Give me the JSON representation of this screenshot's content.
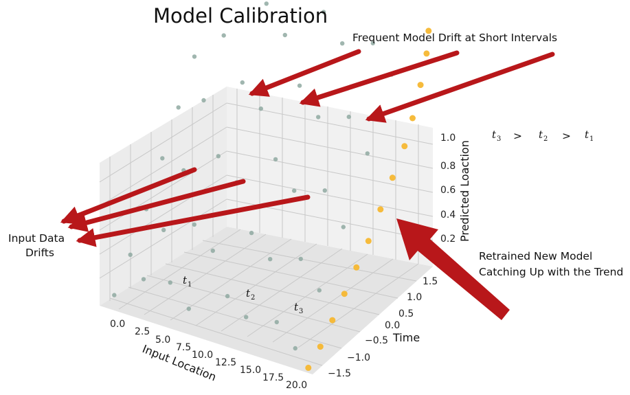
{
  "chart_data": {
    "type": "scatter",
    "projection": "3d",
    "title": "Model Calibration",
    "xlabel": "Input Location",
    "ylabel": "Time",
    "zlabel": "Predicted Loaction",
    "x_ticks": [
      "0.0",
      "2.5",
      "5.0",
      "7.5",
      "10.0",
      "12.5",
      "15.0",
      "17.5",
      "20.0"
    ],
    "y_ticks": [
      "−1.5",
      "−1.0",
      "−0.5",
      "0.0",
      "0.5",
      "1.0",
      "1.5"
    ],
    "z_ticks": [
      "0.2",
      "0.4",
      "0.6",
      "0.8",
      "1.0"
    ],
    "xlim": [
      0,
      20
    ],
    "ylim": [
      -1.5,
      1.5
    ],
    "zlim": [
      0.1,
      1.05
    ],
    "grid": true,
    "series": [
      {
        "name": "",
        "color": "#8fa9a1",
        "values": [
          [
            1.0,
            0.6,
            0.78
          ],
          [
            1.0,
            0.2,
            0.64
          ],
          [
            1.0,
            -0.2,
            0.5
          ],
          [
            1.0,
            -0.6,
            0.36
          ],
          [
            1.0,
            -1.0,
            0.24
          ],
          [
            1.0,
            -1.4,
            0.14
          ],
          [
            3.0,
            0.8,
            0.86
          ],
          [
            3.0,
            0.3,
            0.68
          ],
          [
            3.0,
            -0.2,
            0.48
          ],
          [
            3.0,
            -0.7,
            0.32
          ],
          [
            3.0,
            -1.2,
            0.2
          ],
          [
            5.5,
            1.2,
            0.96
          ],
          [
            5.5,
            0.6,
            0.74
          ],
          [
            5.5,
            0.0,
            0.54
          ],
          [
            5.5,
            -0.6,
            0.36
          ],
          [
            5.5,
            -1.2,
            0.22
          ],
          [
            8.0,
            1.0,
            0.9
          ],
          [
            8.0,
            0.4,
            0.7
          ],
          [
            8.0,
            -0.2,
            0.5
          ],
          [
            8.0,
            -0.8,
            0.32
          ],
          [
            8.0,
            -1.4,
            0.18
          ],
          [
            10.5,
            1.3,
            0.98
          ],
          [
            10.5,
            0.7,
            0.78
          ],
          [
            10.5,
            0.1,
            0.58
          ],
          [
            10.5,
            -0.5,
            0.38
          ],
          [
            10.5,
            -1.1,
            0.22
          ],
          [
            13.0,
            1.1,
            0.92
          ],
          [
            13.0,
            0.5,
            0.72
          ],
          [
            13.0,
            -0.1,
            0.52
          ],
          [
            13.0,
            -0.7,
            0.34
          ],
          [
            13.0,
            -1.3,
            0.2
          ],
          [
            15.5,
            1.2,
            0.94
          ],
          [
            15.5,
            0.6,
            0.74
          ],
          [
            15.5,
            0.0,
            0.54
          ],
          [
            15.5,
            -0.6,
            0.36
          ],
          [
            15.5,
            -1.2,
            0.2
          ],
          [
            18.0,
            1.0,
            0.88
          ],
          [
            18.0,
            0.4,
            0.66
          ],
          [
            18.0,
            -0.2,
            0.46
          ],
          [
            18.0,
            -0.8,
            0.3
          ],
          [
            18.0,
            -1.4,
            0.16
          ]
        ]
      },
      {
        "name": "",
        "color": "#f5b731",
        "values": [
          [
            19.6,
            -1.5,
            0.12
          ],
          [
            19.6,
            -1.2,
            0.16
          ],
          [
            19.6,
            -0.9,
            0.22
          ],
          [
            19.6,
            -0.6,
            0.28
          ],
          [
            19.6,
            -0.3,
            0.34
          ],
          [
            19.6,
            0.0,
            0.4
          ],
          [
            19.6,
            0.3,
            0.48
          ],
          [
            19.6,
            0.6,
            0.56
          ],
          [
            19.6,
            0.9,
            0.64
          ],
          [
            19.6,
            1.1,
            0.72
          ],
          [
            19.6,
            1.3,
            0.82
          ],
          [
            19.6,
            1.45,
            0.92
          ],
          [
            19.6,
            1.5,
            1.0
          ]
        ]
      }
    ]
  },
  "annotations": {
    "drift_top": "Frequent Model Drift at Short Intervals",
    "drift_left_line1": "Input Data",
    "drift_left_line2": "Drifts",
    "retrain_line1": "Retrained New Model",
    "retrain_line2": "Catching Up with the Trend",
    "order_gt": ">",
    "time_marks": [
      {
        "base": "t",
        "sub": "1"
      },
      {
        "base": "t",
        "sub": "2"
      },
      {
        "base": "t",
        "sub": "3"
      }
    ],
    "arrow_color": "#b8171a"
  }
}
